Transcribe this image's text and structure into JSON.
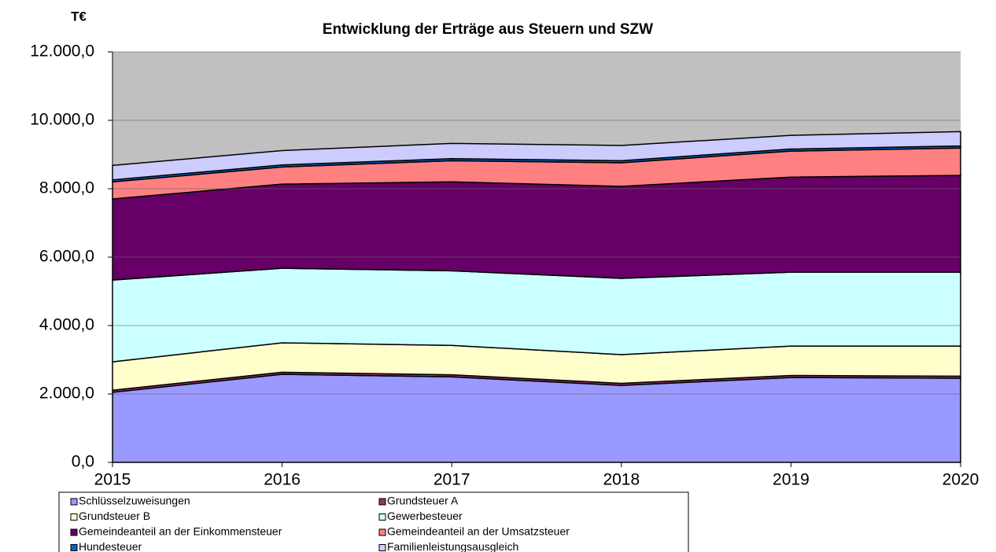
{
  "chart_data": {
    "type": "stacked_area",
    "title": "Entwicklung der Erträge aus Steuern und SZW",
    "y_unit": "T€",
    "x": [
      2015,
      2016,
      2017,
      2018,
      2019,
      2020
    ],
    "xlim": [
      2015,
      2020
    ],
    "xticks": [
      2015,
      2016,
      2017,
      2018,
      2019,
      2020
    ],
    "ylim": [
      0,
      12000
    ],
    "yticks": [
      {
        "value": 0,
        "label": "0,0"
      },
      {
        "value": 2000,
        "label": "2.000,0"
      },
      {
        "value": 4000,
        "label": "4.000,0"
      },
      {
        "value": 6000,
        "label": "6.000,0"
      },
      {
        "value": 8000,
        "label": "8.000,0"
      },
      {
        "value": 10000,
        "label": "10.000,0"
      },
      {
        "value": 12000,
        "label": "12.000,0"
      }
    ],
    "grid": true,
    "background": "#c0c0c0",
    "series": [
      {
        "name": "Schlüsselzuweisungen",
        "color": "#9999ff",
        "values": [
          2050,
          2575,
          2500,
          2250,
          2480,
          2460
        ]
      },
      {
        "name": "Grundsteuer A",
        "color": "#993366",
        "values": [
          60,
          60,
          60,
          60,
          60,
          60
        ]
      },
      {
        "name": "Grundsteuer B",
        "color": "#ffffcc",
        "values": [
          830,
          860,
          860,
          840,
          860,
          880
        ]
      },
      {
        "name": "Gewerbesteuer",
        "color": "#ccffff",
        "values": [
          2390,
          2180,
          2180,
          2230,
          2160,
          2160
        ]
      },
      {
        "name": "Gemeindeanteil an der Einkommensteuer",
        "color": "#660066",
        "values": [
          2370,
          2460,
          2600,
          2690,
          2780,
          2830
        ]
      },
      {
        "name": "Gemeindeanteil an der Umsatzsteuer",
        "color": "#ff8080",
        "values": [
          500,
          500,
          620,
          690,
          760,
          800
        ]
      },
      {
        "name": "Hundesteuer",
        "color": "#0066cc",
        "values": [
          60,
          60,
          60,
          60,
          60,
          60
        ]
      },
      {
        "name": "Familienleistungsausgleich",
        "color": "#ccccff",
        "values": [
          420,
          420,
          445,
          445,
          400,
          420
        ]
      }
    ]
  }
}
